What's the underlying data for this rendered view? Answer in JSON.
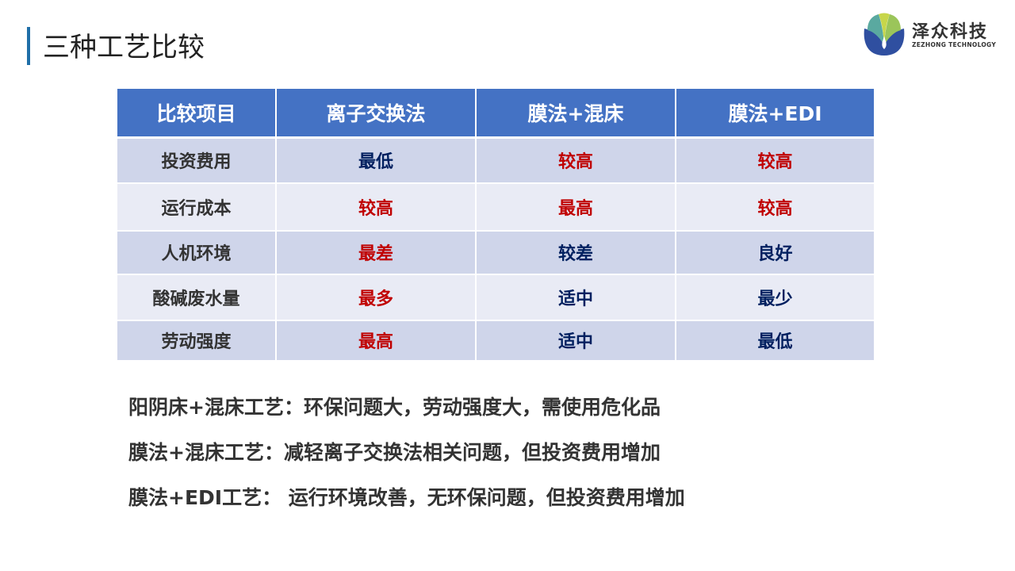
{
  "slide": {
    "title": "三种工艺比较"
  },
  "logo": {
    "name": "泽众科技",
    "subtitle": "ZEZHONG TECHNOLOGY"
  },
  "colors": {
    "header": "#4472C4",
    "row_dark": "#CFD5EA",
    "row_light": "#E9EBF5",
    "bad": "#C00000",
    "neutral": "#002060"
  },
  "table": {
    "headers": [
      "比较项目",
      "离子交换法",
      "膜法+混床",
      "膜法+EDI"
    ],
    "rows": [
      {
        "label": "投资费用",
        "cells": [
          {
            "text": "最低",
            "tone": "navy"
          },
          {
            "text": "较高",
            "tone": "red"
          },
          {
            "text": "较高",
            "tone": "red"
          }
        ]
      },
      {
        "label": "运行成本",
        "cells": [
          {
            "text": "较高",
            "tone": "red"
          },
          {
            "text": "最高",
            "tone": "red"
          },
          {
            "text": "较高",
            "tone": "red"
          }
        ]
      },
      {
        "label": "人机环境",
        "cells": [
          {
            "text": "最差",
            "tone": "red"
          },
          {
            "text": "较差",
            "tone": "navy"
          },
          {
            "text": "良好",
            "tone": "navy"
          }
        ]
      },
      {
        "label": "酸碱废水量",
        "cells": [
          {
            "text": "最多",
            "tone": "red"
          },
          {
            "text": "适中",
            "tone": "navy"
          },
          {
            "text": "最少",
            "tone": "navy"
          }
        ]
      },
      {
        "label": "劳动强度",
        "cells": [
          {
            "text": "最高",
            "tone": "red"
          },
          {
            "text": "适中",
            "tone": "navy"
          },
          {
            "text": "最低",
            "tone": "navy"
          }
        ]
      }
    ]
  },
  "notes": [
    "阳阴床+混床工艺：环保问题大，劳动强度大，需使用危化品",
    "膜法+混床工艺：减轻离子交换法相关问题，但投资费用增加",
    "膜法+EDI工艺： 运行环境改善，无环保问题，但投资费用增加"
  ]
}
